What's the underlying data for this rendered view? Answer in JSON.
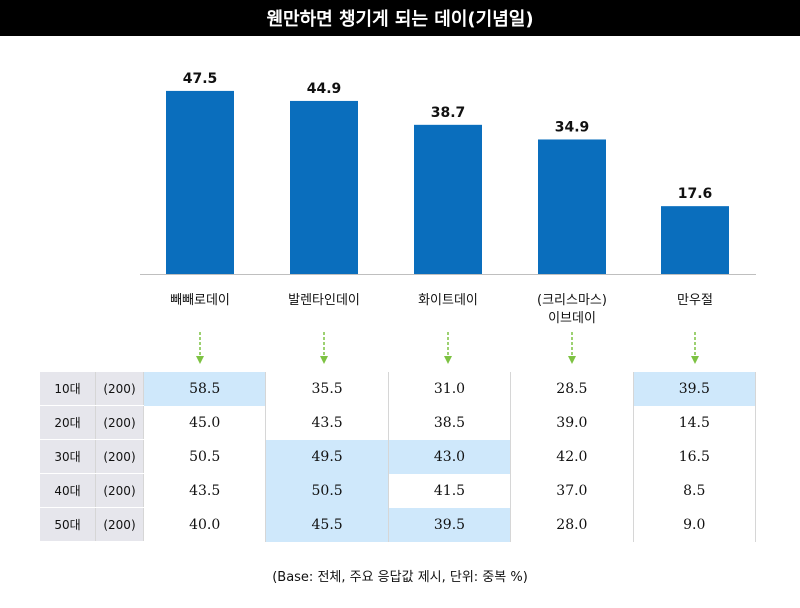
{
  "chart_data": {
    "type": "bar",
    "title": "웬만하면 챙기게 되는 데이(기념일)",
    "categories": [
      [
        "빼빼로데이"
      ],
      [
        "발렌타인데이"
      ],
      [
        "화이트데이"
      ],
      [
        "(크리스마스)",
        "이브데이"
      ],
      [
        "만우절"
      ]
    ],
    "values": [
      47.5,
      44.9,
      38.7,
      34.9,
      17.6
    ],
    "ylim": [
      0,
      55
    ],
    "bar_color": "#0a6ebd",
    "arrow_color": "#7dc242"
  },
  "table": {
    "rows": [
      {
        "group": "10대",
        "base": "(200)",
        "values": [
          "58.5",
          "35.5",
          "31.0",
          "28.5",
          "39.5"
        ],
        "highlight": [
          true,
          false,
          false,
          false,
          true
        ]
      },
      {
        "group": "20대",
        "base": "(200)",
        "values": [
          "45.0",
          "43.5",
          "38.5",
          "39.0",
          "14.5"
        ],
        "highlight": [
          false,
          false,
          false,
          false,
          false
        ]
      },
      {
        "group": "30대",
        "base": "(200)",
        "values": [
          "50.5",
          "49.5",
          "43.0",
          "42.0",
          "16.5"
        ],
        "highlight": [
          false,
          true,
          true,
          false,
          false
        ]
      },
      {
        "group": "40대",
        "base": "(200)",
        "values": [
          "43.5",
          "50.5",
          "41.5",
          "37.0",
          "8.5"
        ],
        "highlight": [
          false,
          true,
          false,
          false,
          false
        ]
      },
      {
        "group": "50대",
        "base": "(200)",
        "values": [
          "40.0",
          "45.5",
          "39.5",
          "28.0",
          "9.0"
        ],
        "highlight": [
          false,
          true,
          true,
          false,
          false
        ]
      }
    ],
    "highlight_color": "#cfe8fb"
  },
  "footnote": "(Base: 전체, 주요 응답값 제시, 단위: 중복 %)"
}
